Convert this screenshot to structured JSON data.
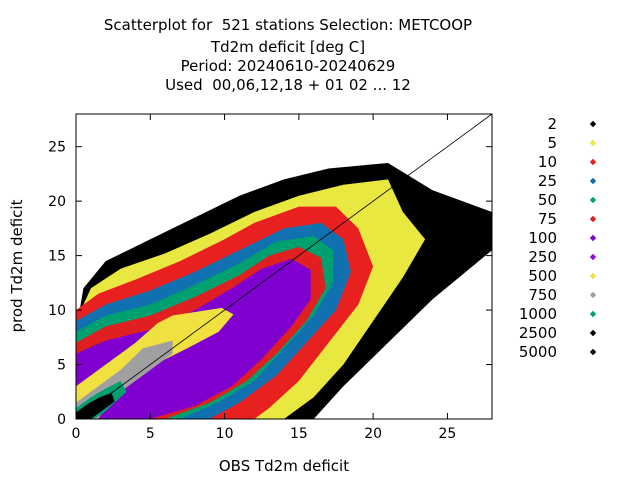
{
  "chart_data": {
    "type": "scatter",
    "title": "Scatterplot for  521 stations Selection: METCOOP",
    "subtitle_lines": [
      "Td2m deficit [deg C]",
      "Period: 20240610-20240629",
      "Used  00,06,12,18 + 01 02 ... 12"
    ],
    "xlabel": "OBS Td2m deficit",
    "ylabel": "prod Td2m deficit",
    "xlim": [
      0,
      28
    ],
    "ylim": [
      0,
      28
    ],
    "x_ticks": [
      0,
      5,
      10,
      15,
      20,
      25
    ],
    "y_ticks": [
      0,
      5,
      10,
      15,
      20,
      25
    ],
    "diagonal": [
      [
        0,
        0
      ],
      [
        28,
        28
      ]
    ],
    "density_levels": [
      {
        "label": "2",
        "color": "#000000"
      },
      {
        "label": "5",
        "color": "#e8e840"
      },
      {
        "label": "10",
        "color": "#e82020"
      },
      {
        "label": "25",
        "color": "#1070b0"
      },
      {
        "label": "50",
        "color": "#00a070"
      },
      {
        "label": "75",
        "color": "#e02020"
      },
      {
        "label": "100",
        "color": "#8000d0"
      },
      {
        "label": "250",
        "color": "#9010d8"
      },
      {
        "label": "500",
        "color": "#f0e040"
      },
      {
        "label": "750",
        "color": "#a0a0a0"
      },
      {
        "label": "1000",
        "color": "#00a070"
      },
      {
        "label": "2500",
        "color": "#000000"
      },
      {
        "label": "5000",
        "color": "#000000"
      }
    ],
    "density_regions": [
      {
        "level": 0,
        "vertices": [
          [
            0,
            0
          ],
          [
            0,
            8
          ],
          [
            0.5,
            12
          ],
          [
            2,
            14.5
          ],
          [
            5,
            16.5
          ],
          [
            8,
            18.5
          ],
          [
            11,
            20.5
          ],
          [
            14,
            22
          ],
          [
            17,
            23
          ],
          [
            21,
            23.5
          ],
          [
            24,
            21
          ],
          [
            28,
            19
          ],
          [
            28,
            15.5
          ],
          [
            24,
            11
          ],
          [
            21,
            7
          ],
          [
            18,
            3
          ],
          [
            16,
            0
          ]
        ]
      },
      {
        "level": 1,
        "vertices": [
          [
            0,
            0
          ],
          [
            0,
            9
          ],
          [
            1,
            12
          ],
          [
            3,
            13.8
          ],
          [
            6,
            15.2
          ],
          [
            9,
            17
          ],
          [
            12,
            19
          ],
          [
            15,
            20.5
          ],
          [
            18,
            21.5
          ],
          [
            21,
            22
          ],
          [
            22,
            19
          ],
          [
            23.5,
            16.5
          ],
          [
            22,
            13
          ],
          [
            20,
            9
          ],
          [
            18,
            5
          ],
          [
            16,
            2
          ],
          [
            14,
            0
          ]
        ]
      },
      {
        "level": 2,
        "vertices": [
          [
            0,
            0
          ],
          [
            0,
            10
          ],
          [
            1.5,
            11.5
          ],
          [
            4,
            12.8
          ],
          [
            7,
            14.5
          ],
          [
            10,
            16.5
          ],
          [
            12,
            18
          ],
          [
            15,
            19.5
          ],
          [
            17.5,
            19.5
          ],
          [
            19,
            17.5
          ],
          [
            20,
            14
          ],
          [
            19,
            10.5
          ],
          [
            17,
            7
          ],
          [
            15,
            3.5
          ],
          [
            13,
            1
          ],
          [
            12,
            0
          ]
        ]
      },
      {
        "level": 3,
        "vertices": [
          [
            0,
            0
          ],
          [
            0,
            9
          ],
          [
            2,
            10.5
          ],
          [
            5,
            11.8
          ],
          [
            8,
            13.5
          ],
          [
            11,
            15.5
          ],
          [
            14,
            17.5
          ],
          [
            16.5,
            18
          ],
          [
            18,
            16.5
          ],
          [
            18.5,
            13.5
          ],
          [
            17.5,
            10
          ],
          [
            15.5,
            7
          ],
          [
            13.5,
            4
          ],
          [
            11,
            1.5
          ],
          [
            9,
            0
          ]
        ]
      },
      {
        "level": 4,
        "vertices": [
          [
            0,
            0
          ],
          [
            0,
            8
          ],
          [
            2,
            9.5
          ],
          [
            5,
            10.5
          ],
          [
            8,
            12.3
          ],
          [
            11,
            14.3
          ],
          [
            13.5,
            16.3
          ],
          [
            16,
            16.8
          ],
          [
            17.3,
            15.5
          ],
          [
            17.3,
            12.5
          ],
          [
            16,
            9.5
          ],
          [
            14,
            6.5
          ],
          [
            12,
            3.5
          ],
          [
            9.5,
            1.5
          ],
          [
            7,
            0
          ]
        ]
      },
      {
        "level": 5,
        "vertices": [
          [
            0,
            0
          ],
          [
            0,
            7
          ],
          [
            2,
            8.5
          ],
          [
            5,
            9.5
          ],
          [
            8,
            11.2
          ],
          [
            11,
            13.2
          ],
          [
            13,
            15
          ],
          [
            15,
            15.8
          ],
          [
            16.5,
            14.8
          ],
          [
            16.8,
            12
          ],
          [
            15.5,
            9
          ],
          [
            13.5,
            6
          ],
          [
            11.5,
            3.5
          ],
          [
            9,
            1.5
          ],
          [
            6,
            0
          ]
        ]
      },
      {
        "level": 6,
        "vertices": [
          [
            0,
            0
          ],
          [
            0,
            6
          ],
          [
            2,
            7.2
          ],
          [
            5,
            8.2
          ],
          [
            8,
            10
          ],
          [
            10.5,
            12
          ],
          [
            12.5,
            13.8
          ],
          [
            14.5,
            14.7
          ],
          [
            15.8,
            13.7
          ],
          [
            15.8,
            11
          ],
          [
            14.5,
            8.5
          ],
          [
            12.5,
            5.5
          ],
          [
            10.5,
            3
          ],
          [
            8,
            1.2
          ],
          [
            5,
            0
          ]
        ]
      },
      {
        "level": 8,
        "vertices": [
          [
            0,
            0
          ],
          [
            0,
            3
          ],
          [
            2,
            5
          ],
          [
            4,
            7
          ],
          [
            5.5,
            8.8
          ],
          [
            6.5,
            9.5
          ],
          [
            9.8,
            10.2
          ],
          [
            10.6,
            9.6
          ],
          [
            9.6,
            8
          ],
          [
            7.5,
            6.5
          ],
          [
            5,
            4.8
          ],
          [
            3,
            3
          ],
          [
            1.5,
            1.2
          ],
          [
            1,
            0
          ]
        ]
      },
      {
        "level": 9,
        "vertices": [
          [
            0,
            0
          ],
          [
            0,
            1.5
          ],
          [
            1.5,
            3
          ],
          [
            3,
            4.5
          ],
          [
            4.5,
            6.5
          ],
          [
            6.5,
            7.2
          ],
          [
            6.5,
            6
          ],
          [
            5,
            4.5
          ],
          [
            3.5,
            3
          ],
          [
            2.2,
            1.5
          ],
          [
            1.5,
            0
          ]
        ]
      },
      {
        "level": 10,
        "vertices": [
          [
            0,
            0
          ],
          [
            0,
            1
          ],
          [
            1,
            2
          ],
          [
            2,
            2.8
          ],
          [
            3,
            3.5
          ],
          [
            3.4,
            2.5
          ],
          [
            2.6,
            1.5
          ],
          [
            1.8,
            0.5
          ],
          [
            1.2,
            0
          ]
        ]
      },
      {
        "level": 11,
        "vertices": [
          [
            0,
            0
          ],
          [
            0,
            0.6
          ],
          [
            0.8,
            1.4
          ],
          [
            1.6,
            2
          ],
          [
            2.4,
            2.4
          ],
          [
            2.6,
            1.6
          ],
          [
            1.8,
            0.8
          ],
          [
            1,
            0
          ]
        ]
      }
    ]
  }
}
